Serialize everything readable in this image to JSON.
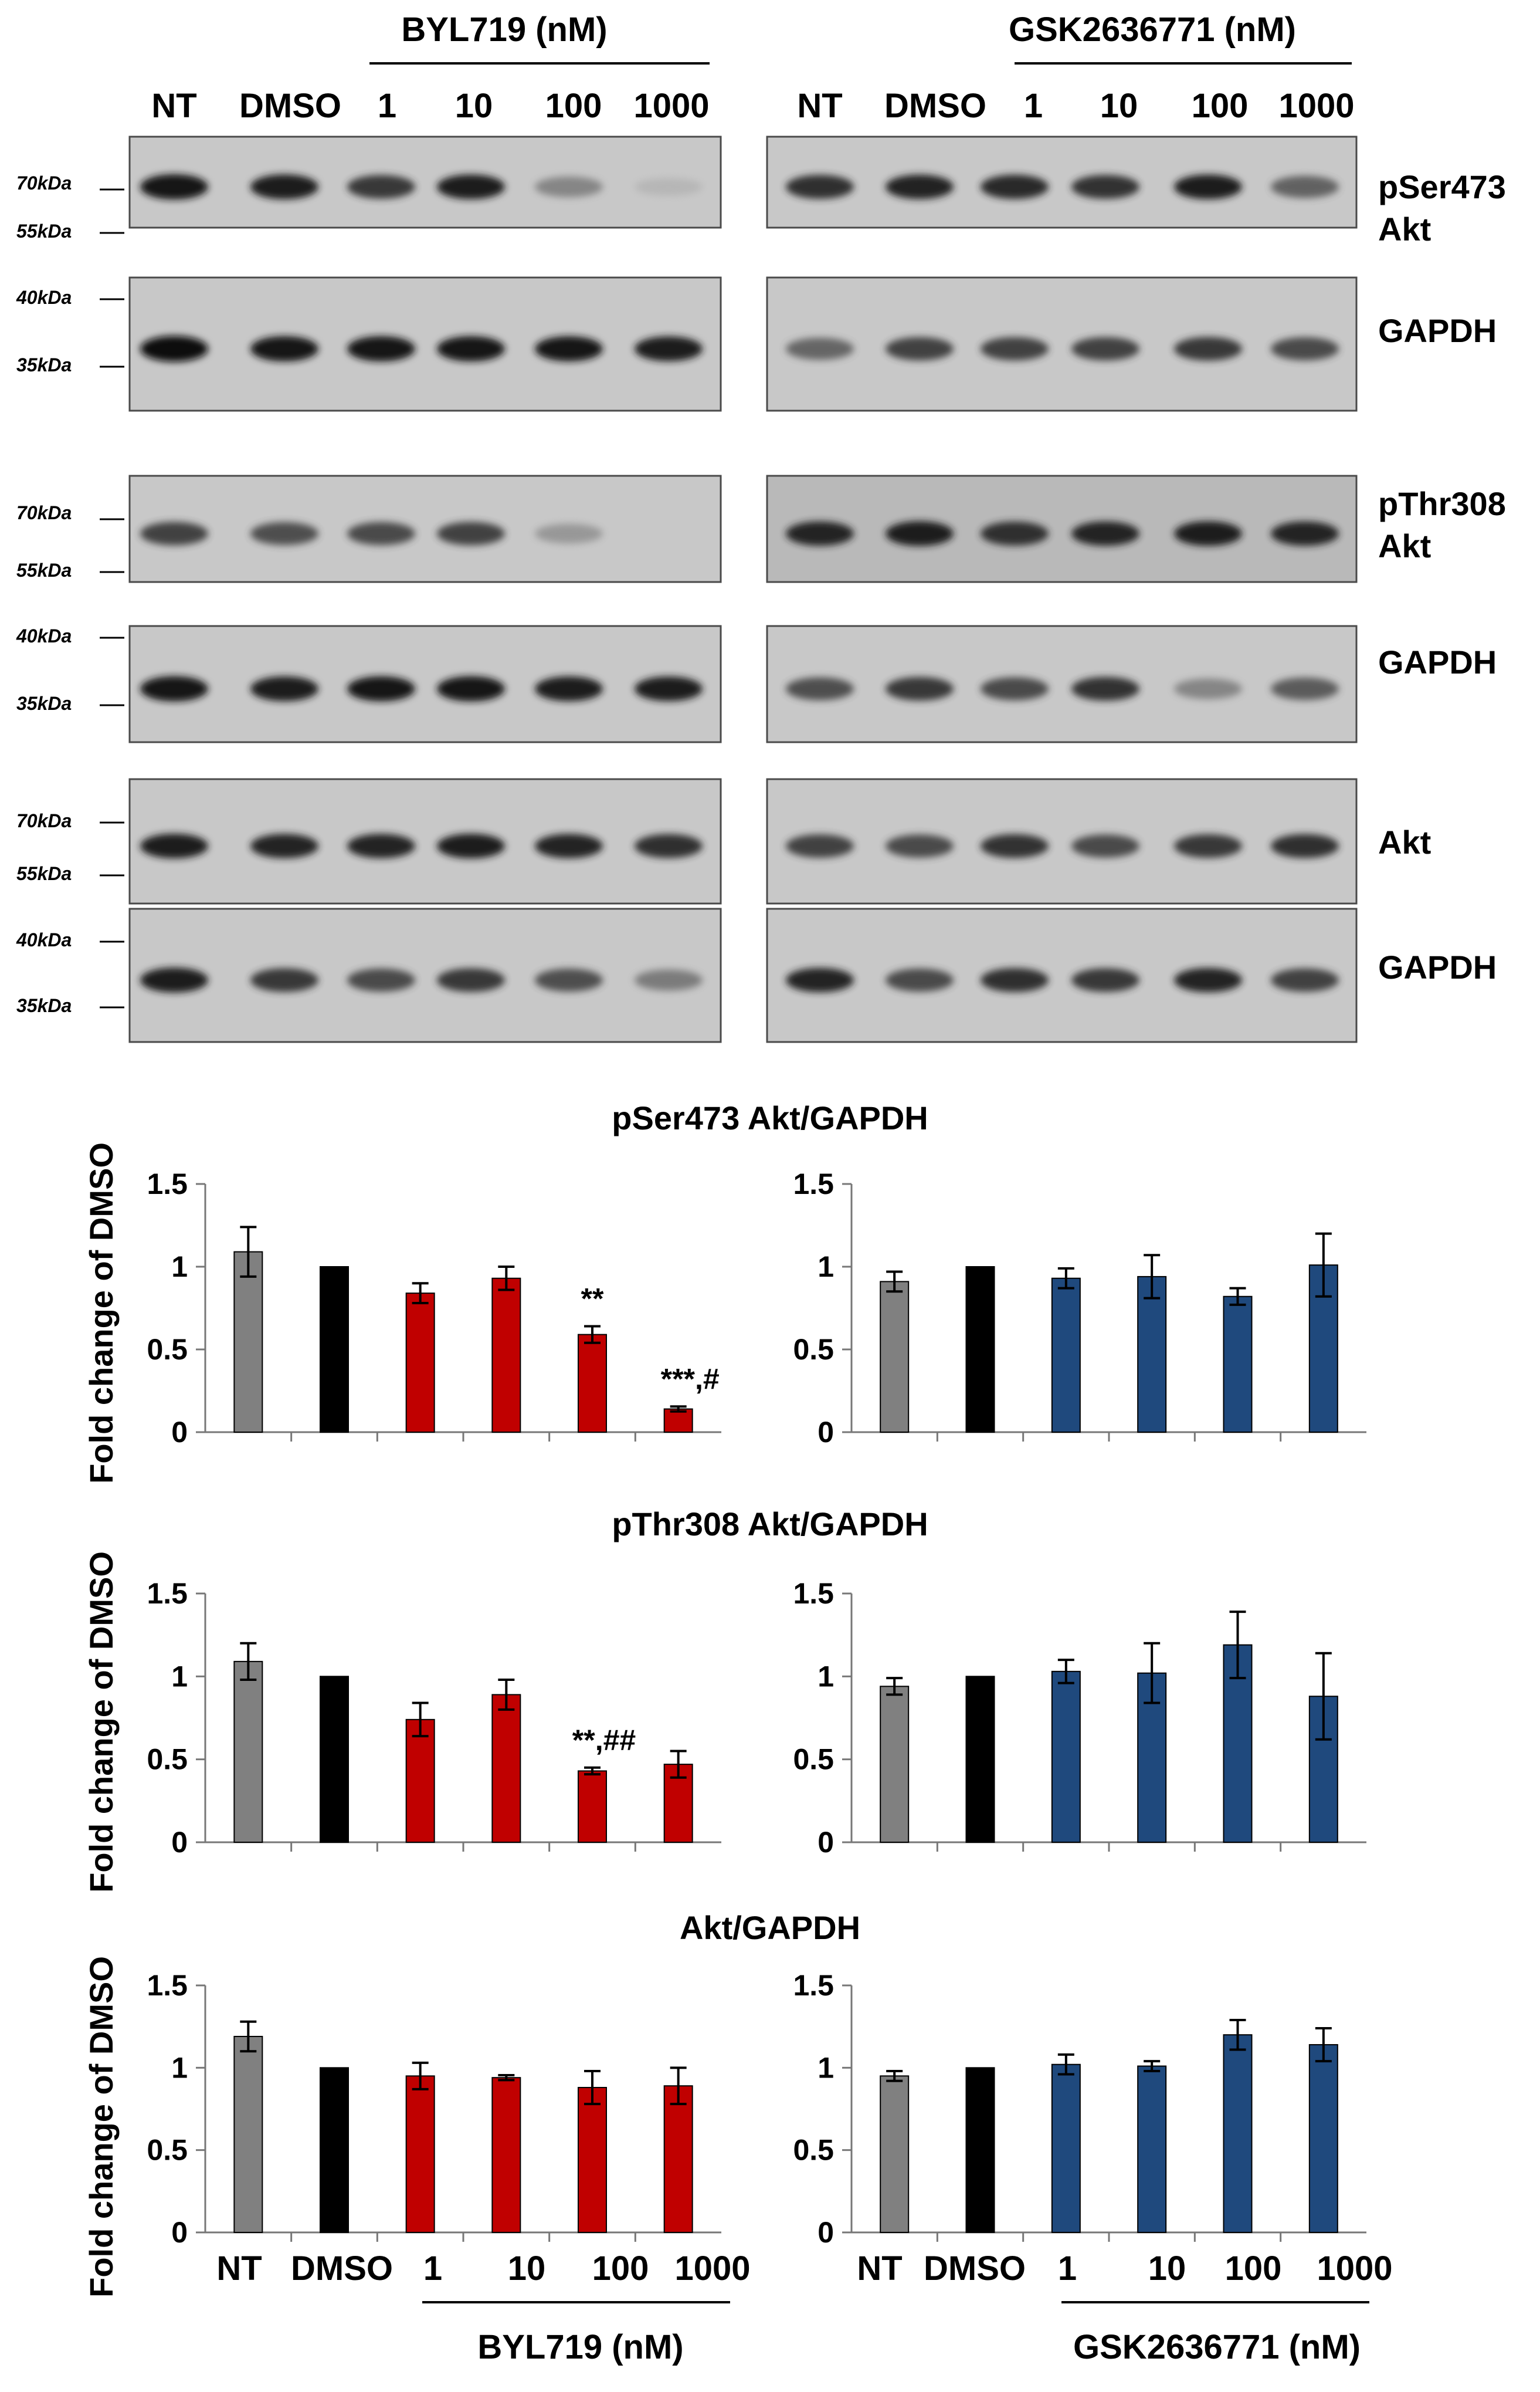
{
  "blots": {
    "groups": [
      {
        "title": "BYL719 (nM)",
        "lanes": [
          "NT",
          "DMSO",
          "1",
          "10",
          "100",
          "1000"
        ]
      },
      {
        "title": "GSK2636771 (nM)",
        "lanes": [
          "NT",
          "DMSO",
          "1",
          "10",
          "100",
          "1000"
        ]
      }
    ],
    "rows": [
      {
        "label": [
          "pSer473",
          "Akt"
        ],
        "markers": [
          "70kDa",
          "55kDa"
        ],
        "intensity": [
          [
            0.95,
            0.9,
            0.78,
            0.88,
            0.45,
            0.12
          ],
          [
            0.82,
            0.86,
            0.84,
            0.8,
            0.88,
            0.62
          ]
        ]
      },
      {
        "label": [
          "GAPDH"
        ],
        "markers": [
          "40kDa",
          "35kDa"
        ],
        "intensity": [
          [
            1,
            0.95,
            0.95,
            0.95,
            0.93,
            0.9
          ],
          [
            0.6,
            0.75,
            0.75,
            0.75,
            0.78,
            0.72
          ]
        ]
      },
      {
        "label": [
          "pThr308",
          "Akt"
        ],
        "markers": [
          "70kDa",
          "55kDa"
        ],
        "intensity": [
          [
            0.75,
            0.7,
            0.72,
            0.75,
            0.35,
            0.02
          ],
          [
            0.85,
            0.9,
            0.82,
            0.85,
            0.88,
            0.85
          ]
        ]
      },
      {
        "label": [
          "GAPDH"
        ],
        "markers": [
          "40kDa",
          "35kDa"
        ],
        "intensity": [
          [
            0.95,
            0.9,
            0.92,
            0.95,
            0.9,
            0.88
          ],
          [
            0.7,
            0.78,
            0.72,
            0.8,
            0.45,
            0.65
          ]
        ]
      },
      {
        "label": [
          "Akt"
        ],
        "markers": [
          "70kDa",
          "55kDa"
        ],
        "intensity": [
          [
            0.88,
            0.85,
            0.85,
            0.88,
            0.85,
            0.82
          ],
          [
            0.75,
            0.72,
            0.8,
            0.72,
            0.78,
            0.82
          ]
        ]
      },
      {
        "label": [
          "GAPDH"
        ],
        "markers": [
          "40kDa",
          "35kDa"
        ],
        "intensity": [
          [
            0.9,
            0.78,
            0.72,
            0.78,
            0.7,
            0.5
          ],
          [
            0.85,
            0.72,
            0.82,
            0.78,
            0.85,
            0.75
          ]
        ]
      }
    ]
  },
  "colors": {
    "nt": "#808080",
    "dmso": "#000000",
    "byl": "#c00000",
    "gsk": "#1f497d"
  },
  "xaxis": {
    "categories": [
      "NT",
      "DMSO",
      "1",
      "10",
      "100",
      "1000"
    ],
    "left_group": "BYL719 (nM)",
    "right_group": "GSK2636771 (nM)"
  },
  "chart_data": [
    {
      "type": "bar",
      "title": "pSer473 Akt/GAPDH",
      "ylabel": "Fold change of DMSO",
      "ylim": [
        0,
        1.5
      ],
      "yticks": [
        "0",
        "0.5",
        "1",
        "1.5"
      ],
      "categories": [
        "NT",
        "DMSO",
        "1",
        "10",
        "100",
        "1000"
      ],
      "values": [
        1.09,
        1.0,
        0.84,
        0.93,
        0.59,
        0.14
      ],
      "errors": [
        0.15,
        0,
        0.06,
        0.07,
        0.05,
        0.015
      ],
      "annotations": [
        "",
        "",
        "",
        "",
        "**",
        "***,#"
      ]
    },
    {
      "type": "bar",
      "title": "",
      "ylabel": "",
      "ylim": [
        0,
        1.5
      ],
      "yticks": [
        "0",
        "0.5",
        "1",
        "1.5"
      ],
      "categories": [
        "NT",
        "DMSO",
        "1",
        "10",
        "100",
        "1000"
      ],
      "values": [
        0.91,
        1.0,
        0.93,
        0.94,
        0.82,
        1.01
      ],
      "errors": [
        0.06,
        0,
        0.06,
        0.13,
        0.05,
        0.19
      ],
      "annotations": [
        "",
        "",
        "",
        "",
        "",
        ""
      ]
    },
    {
      "type": "bar",
      "title": "pThr308 Akt/GAPDH",
      "ylabel": "Fold change of DMSO",
      "ylim": [
        0,
        1.5
      ],
      "yticks": [
        "0",
        "0.5",
        "1",
        "1.5"
      ],
      "categories": [
        "NT",
        "DMSO",
        "1",
        "10",
        "100",
        "1000"
      ],
      "values": [
        1.09,
        1.0,
        0.74,
        0.89,
        0.43,
        0.47
      ],
      "errors": [
        0.11,
        0,
        0.1,
        0.09,
        0.02,
        0.08
      ],
      "annotations": [
        "",
        "",
        "",
        "",
        "**,##",
        ""
      ]
    },
    {
      "type": "bar",
      "title": "",
      "ylabel": "",
      "ylim": [
        0,
        1.5
      ],
      "yticks": [
        "0",
        "0.5",
        "1",
        "1.5"
      ],
      "categories": [
        "NT",
        "DMSO",
        "1",
        "10",
        "100",
        "1000"
      ],
      "values": [
        0.94,
        1.0,
        1.03,
        1.02,
        1.19,
        0.88
      ],
      "errors": [
        0.05,
        0,
        0.07,
        0.18,
        0.2,
        0.26
      ],
      "annotations": [
        "",
        "",
        "",
        "",
        "",
        ""
      ]
    },
    {
      "type": "bar",
      "title": "Akt/GAPDH",
      "ylabel": "Fold change of DMSO",
      "ylim": [
        0,
        1.5
      ],
      "yticks": [
        "0",
        "0.5",
        "1",
        "1.5"
      ],
      "categories": [
        "NT",
        "DMSO",
        "1",
        "10",
        "100",
        "1000"
      ],
      "values": [
        1.19,
        1.0,
        0.95,
        0.94,
        0.88,
        0.89
      ],
      "errors": [
        0.09,
        0,
        0.08,
        0.015,
        0.1,
        0.11
      ],
      "annotations": [
        "",
        "",
        "",
        "",
        "",
        ""
      ]
    },
    {
      "type": "bar",
      "title": "",
      "ylabel": "",
      "ylim": [
        0,
        1.5
      ],
      "yticks": [
        "0",
        "0.5",
        "1",
        "1.5"
      ],
      "categories": [
        "NT",
        "DMSO",
        "1",
        "10",
        "100",
        "1000"
      ],
      "values": [
        0.95,
        1.0,
        1.02,
        1.01,
        1.2,
        1.14
      ],
      "errors": [
        0.03,
        0,
        0.06,
        0.03,
        0.09,
        0.1
      ],
      "annotations": [
        "",
        "",
        "",
        "",
        "",
        ""
      ]
    }
  ]
}
